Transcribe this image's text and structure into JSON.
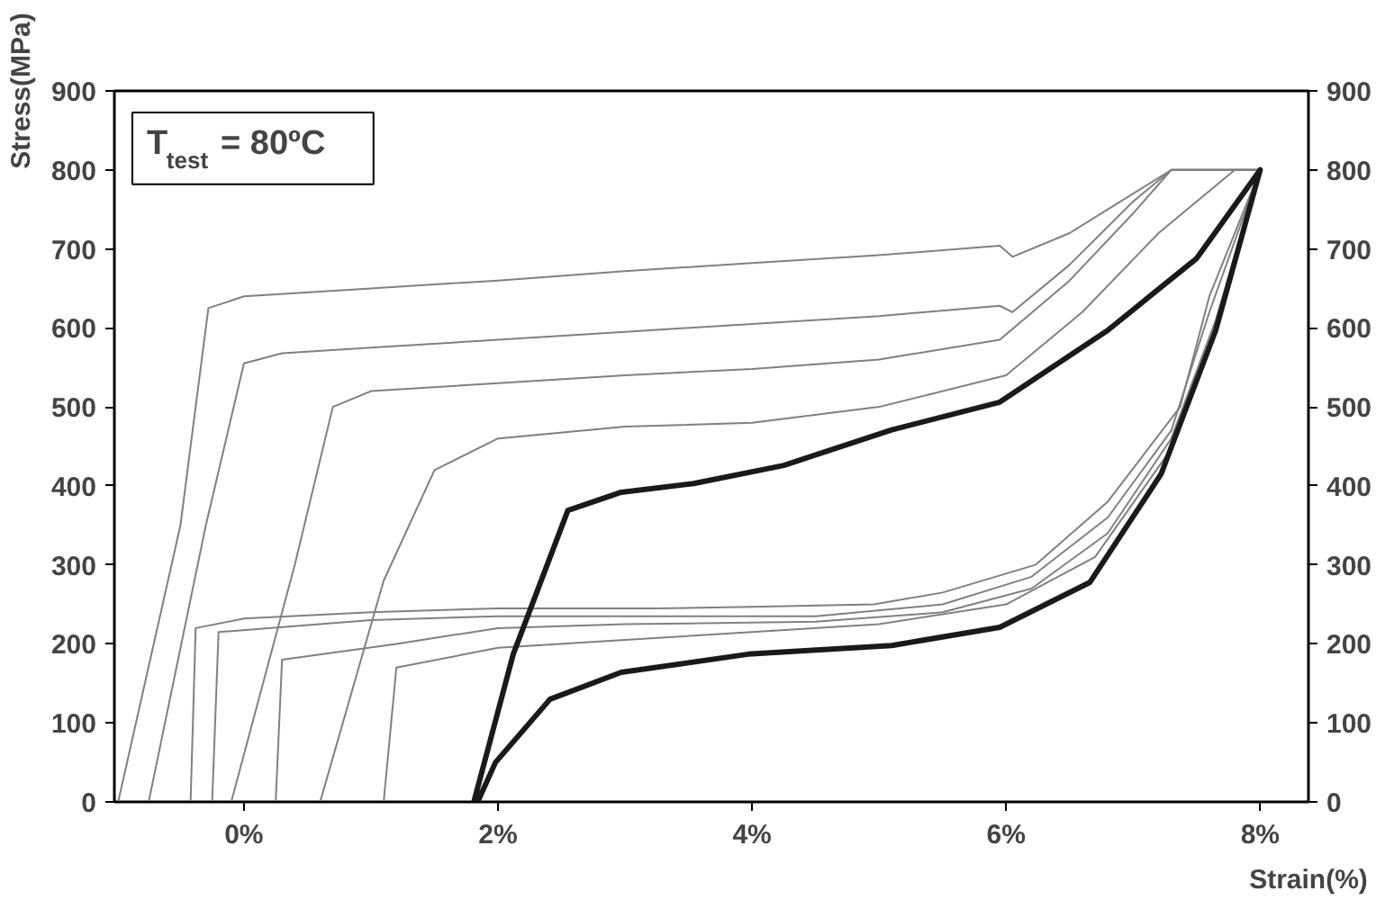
{
  "chart_data": {
    "type": "line",
    "xlabel": "Strain(%)",
    "ylabel": "Stress(MPa)",
    "annotations": [
      "T$_{test}$ = 80ºC"
    ],
    "xlim": [
      -1.02,
      8.38
    ],
    "xticks": [
      {
        "value": 0,
        "label": "0%"
      },
      {
        "value": 2,
        "label": "2%"
      },
      {
        "value": 4,
        "label": "4%"
      },
      {
        "value": 6,
        "label": "6%"
      },
      {
        "value": 8,
        "label": "8%"
      }
    ],
    "ylim": [
      0,
      900
    ],
    "yticks": [
      0,
      100,
      200,
      300,
      400,
      500,
      600,
      700,
      800,
      900
    ],
    "y2lim": [
      0,
      900
    ],
    "y2ticks": [
      0,
      100,
      200,
      300,
      400,
      500,
      600,
      700,
      800,
      900
    ],
    "grid": false,
    "marker": "none",
    "line_style": "solid",
    "series": [
      {
        "color": "#808080",
        "x": [
          -0.99,
          -0.5,
          -0.28,
          0,
          1,
          2,
          3,
          4,
          5,
          5.95,
          6.05,
          6.5,
          7.0,
          7.3,
          8.0,
          7.6,
          7.37,
          6.8,
          6.23,
          5.5,
          4.96,
          4,
          3.26,
          2,
          1,
          0,
          -0.38,
          -0.42
        ],
        "values": [
          0,
          350,
          625,
          640,
          650,
          660,
          672,
          682,
          692,
          704,
          690,
          720,
          770,
          800,
          800,
          640,
          500,
          380,
          300,
          265,
          250,
          247,
          245,
          245,
          240,
          232,
          220,
          0
        ]
      },
      {
        "color": "#808080",
        "x": [
          -0.75,
          -0.3,
          0,
          0.3,
          1,
          2,
          3,
          4,
          5,
          5.95,
          6.05,
          6.5,
          7.0,
          7.3,
          8.0,
          7.6,
          7.3,
          6.8,
          6.2,
          5.5,
          4.5,
          3,
          2,
          1,
          -0.2,
          -0.25
        ],
        "values": [
          0,
          350,
          555,
          568,
          575,
          585,
          595,
          605,
          615,
          628,
          620,
          680,
          760,
          800,
          800,
          620,
          470,
          360,
          285,
          250,
          235,
          235,
          235,
          230,
          215,
          0
        ]
      },
      {
        "color": "#808080",
        "x": [
          -0.1,
          0.4,
          0.7,
          1,
          2,
          3,
          4,
          5,
          5.95,
          6.5,
          7.0,
          7.3,
          8.0,
          7.65,
          7.3,
          6.8,
          6.2,
          5.5,
          4.5,
          3,
          2,
          1.2,
          0.3,
          0.25
        ],
        "values": [
          0,
          300,
          500,
          520,
          530,
          540,
          548,
          560,
          585,
          660,
          745,
          800,
          800,
          610,
          460,
          340,
          270,
          240,
          228,
          225,
          220,
          200,
          180,
          0
        ]
      },
      {
        "color": "#808080",
        "x": [
          0.6,
          1.1,
          1.5,
          2,
          3,
          4,
          5,
          6,
          6.6,
          7.2,
          7.8,
          8.0,
          7.65,
          7.27,
          6.7,
          6.0,
          5,
          4,
          3,
          2,
          1.2,
          1.1
        ],
        "values": [
          0,
          280,
          420,
          460,
          475,
          480,
          500,
          540,
          620,
          720,
          800,
          800,
          600,
          440,
          310,
          250,
          225,
          215,
          205,
          195,
          170,
          0
        ]
      },
      {
        "color": "#1a1a1a",
        "x": [
          1.81,
          2.12,
          2.55,
          2.97,
          3.54,
          4.25,
          5.1,
          5.95,
          6.8,
          7.5,
          8.0,
          7.65,
          7.22,
          6.66,
          5.95,
          5.1,
          3.97,
          2.97,
          2.41,
          1.98,
          1.84
        ],
        "values": [
          0,
          187,
          369,
          392,
          403,
          426,
          471,
          506,
          597,
          688,
          800,
          597,
          415,
          278,
          221,
          198,
          187,
          164,
          130,
          50,
          0
        ]
      }
    ]
  }
}
